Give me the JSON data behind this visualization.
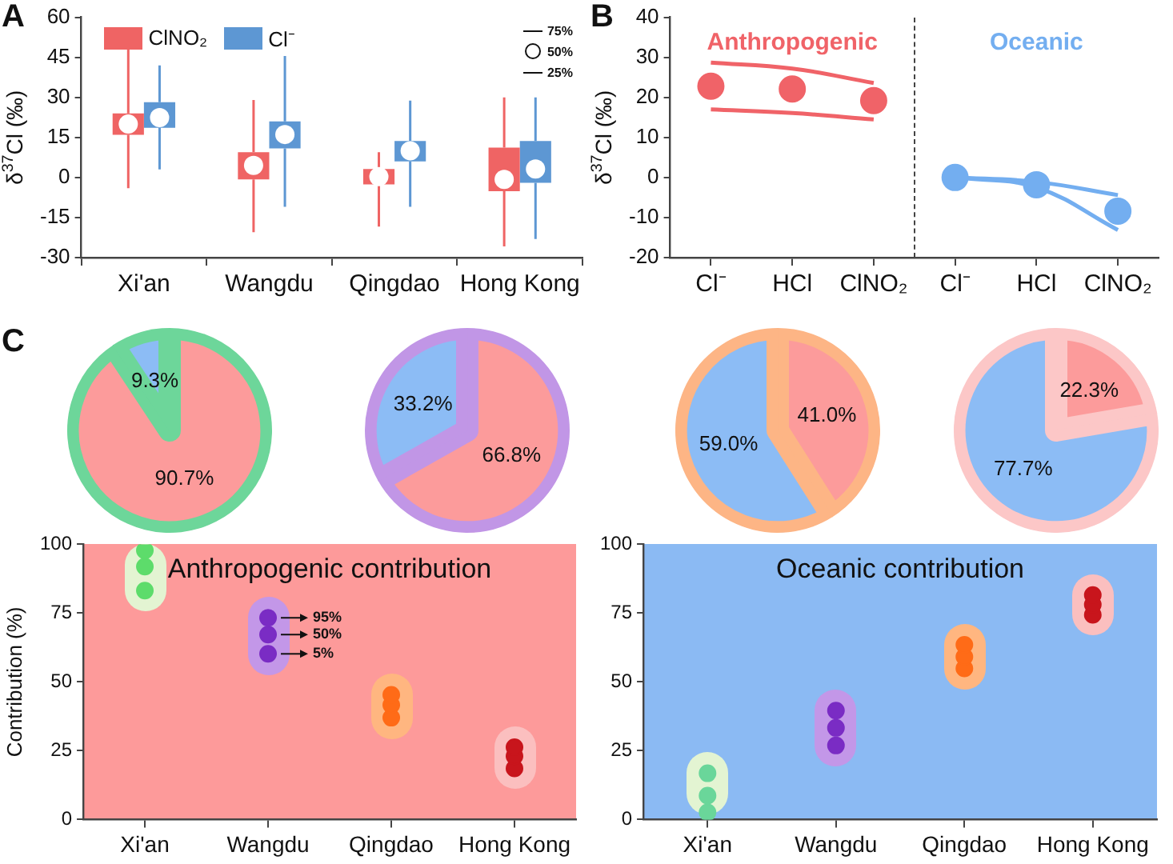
{
  "chart_data": [
    {
      "type": "box",
      "title": "A",
      "ylabel": "δ$^{37}$Cl (‰)",
      "categories": [
        "Xi'an",
        "Wangdu",
        "Qingdao",
        "Hong Kong"
      ],
      "series": [
        {
          "name": "ClNO₂",
          "color": "#ef6464",
          "boxes": [
            {
              "low": -4,
              "q1": 16,
              "median": 20,
              "q3": 24,
              "high": 50
            },
            {
              "low": -20.5,
              "q1": -0.7,
              "median": 4.5,
              "q3": 9.5,
              "high": 29
            },
            {
              "low": -18.4,
              "q1": -2.6,
              "median": 0.3,
              "q3": 3.2,
              "high": 9.5
            },
            {
              "low": -25.8,
              "q1": -5.1,
              "median": -0.7,
              "q3": 11.2,
              "high": 30
            }
          ]
        },
        {
          "name": "Cl⁻",
          "color": "#5d97d3",
          "boxes": [
            {
              "low": 3,
              "q1": 18.6,
              "median": 22.4,
              "q3": 28.2,
              "high": 42
            },
            {
              "low": -11,
              "q1": 10.9,
              "median": 16.1,
              "q3": 21,
              "high": 45.5
            },
            {
              "low": -11,
              "q1": 6,
              "median": 10,
              "q3": 13.7,
              "high": 28.8
            },
            {
              "low": -23,
              "q1": -2,
              "median": 3.2,
              "q3": 13.7,
              "high": 30
            }
          ]
        }
      ],
      "ylim": [
        -30,
        60
      ],
      "yticks": [
        -30,
        -15,
        0,
        15,
        30,
        45,
        60
      ],
      "legend": "top left",
      "annotations": [
        "75%",
        "50%",
        "25%"
      ]
    },
    {
      "type": "scatter",
      "title": "B",
      "ylabel": "δ$^{37}$Cl (‰)",
      "categories": [
        "Cl⁻",
        "HCl",
        "ClNO₂",
        "Cl⁻",
        "HCl",
        "ClNO₂"
      ],
      "marker": "circle",
      "series": [
        {
          "name": "Anthropogenic",
          "color": "#f06368",
          "values": [
            22.8,
            22.1,
            19.2,
            null,
            null,
            null
          ]
        },
        {
          "type": "line",
          "marker": "none",
          "color": "#f06368",
          "values": [
            28.7,
            27.2,
            23.6,
            null,
            null,
            null
          ]
        },
        {
          "type": "line",
          "marker": "none",
          "color": "#f06368",
          "values": [
            17,
            16.1,
            14.5,
            null,
            null,
            null
          ]
        },
        {
          "name": "Oceanic",
          "color": "#73aef0",
          "values": [
            null,
            null,
            null,
            0,
            -1.8,
            -8.4
          ]
        },
        {
          "type": "line",
          "marker": "none",
          "color": "#73aef0",
          "values": [
            null,
            null,
            null,
            0,
            -1.1,
            -4.4
          ]
        },
        {
          "type": "line",
          "marker": "none",
          "color": "#73aef0",
          "values": [
            null,
            null,
            null,
            0,
            -2.5,
            -13.1
          ]
        }
      ],
      "ylim": [
        -20,
        40
      ],
      "yticks": [
        -20,
        -10,
        0,
        10,
        20,
        30,
        40
      ]
    },
    {
      "type": "pie",
      "title": "C",
      "categories": [
        null,
        null
      ],
      "values": [
        90.7,
        9.3
      ],
      "colors": [
        "#fc9b9b",
        "#8cbcf5"
      ],
      "value_labels": [
        "90.7%",
        "9.3%"
      ]
    },
    {
      "type": "pie",
      "categories": [
        null,
        null
      ],
      "values": [
        66.8,
        33.2
      ],
      "colors": [
        "#fc9b9b",
        "#8cbcf5"
      ],
      "value_labels": [
        "66.8%",
        "33.2%"
      ]
    },
    {
      "type": "pie",
      "categories": [
        null,
        null
      ],
      "values": [
        41.0,
        59.0
      ],
      "colors": [
        "#fc9b9b",
        "#8cbcf5"
      ],
      "value_labels": [
        "41.0%",
        "59.0%"
      ]
    },
    {
      "type": "pie",
      "categories": [
        null,
        null
      ],
      "values": [
        22.3,
        77.7
      ],
      "colors": [
        "#fc9b9b",
        "#8cbcf5"
      ],
      "value_labels": [
        "22.3%",
        "77.7%"
      ]
    },
    {
      "type": "scatter",
      "title": "Anthropogenic contribution",
      "ylabel": "Contribution (%)",
      "categories": [
        "Xi'an",
        "Wangdu",
        "Qingdao",
        "Hong Kong"
      ],
      "marker": "circle",
      "series": [
        {
          "values": [
            97.8,
            73.3,
            45.3,
            26.3
          ],
          "colors": [
            "#5ddc6b",
            "#7a2cc4",
            "#ff6b17",
            "#c8151c"
          ]
        },
        {
          "values": [
            91.9,
            67.2,
            41.6,
            23.0
          ],
          "colors": [
            "#5ddc6b",
            "#7a2cc4",
            "#ff6b17",
            "#c8151c"
          ]
        },
        {
          "values": [
            83.2,
            60.2,
            37.0,
            18.6
          ],
          "colors": [
            "#5ddc6b",
            "#7a2cc4",
            "#ff6b17",
            "#c8151c"
          ]
        }
      ],
      "ylim": [
        0,
        100
      ],
      "yticks": [
        0,
        25,
        50,
        75,
        100
      ],
      "bands": [
        {
          "axis": "y",
          "from": 0,
          "to": 100,
          "color": "#fd9a9a"
        }
      ],
      "annotations": [
        {
          "text": "95%",
          "x": "Wangdu",
          "y": 73.3
        },
        {
          "text": "50%",
          "x": "Wangdu",
          "y": 67.2
        },
        {
          "text": "5%",
          "x": "Wangdu",
          "y": 60.2
        }
      ]
    },
    {
      "type": "scatter",
      "title": "Oceanic contribution",
      "categories": [
        "Xi'an",
        "Wangdu",
        "Qingdao",
        "Hong Kong"
      ],
      "marker": "circle",
      "series": [
        {
          "values": [
            16.8,
            39.6,
            63.5,
            81.6
          ],
          "colors": [
            "#6ad69a",
            "#7a2cc4",
            "#ff6b17",
            "#c8151c"
          ]
        },
        {
          "values": [
            8.7,
            33.3,
            59.1,
            78.1
          ],
          "colors": [
            "#6ad69a",
            "#7a2cc4",
            "#ff6b17",
            "#c8151c"
          ]
        },
        {
          "values": [
            2.6,
            26.9,
            54.9,
            74.4
          ],
          "colors": [
            "#6ad69a",
            "#7a2cc4",
            "#ff6b17",
            "#c8151c"
          ]
        }
      ],
      "ylim": [
        0,
        100
      ],
      "yticks": [
        0,
        25,
        50,
        75,
        100
      ],
      "bands": [
        {
          "axis": "y",
          "from": 0,
          "to": 100,
          "color": "#8bbaf3"
        }
      ]
    }
  ]
}
